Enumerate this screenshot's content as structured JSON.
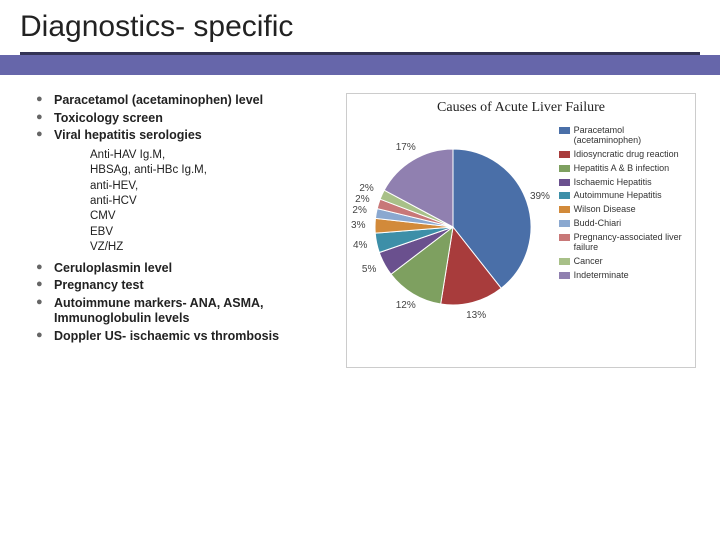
{
  "title": "Diagnostics- specific",
  "bullets_top": [
    "Paracetamol (acetaminophen) level",
    "Toxicology screen",
    "Viral hepatitis serologies"
  ],
  "sub_serologies": [
    "Anti-HAV Ig.M,",
    "HBSAg, anti-HBc Ig.M,",
    "anti-HEV,",
    "anti-HCV",
    "CMV",
    "EBV",
    "VZ/HZ"
  ],
  "bullets_bottom": [
    "Ceruloplasmin level",
    "Pregnancy test",
    "Autoimmune markers- ANA, ASMA, Immunoglobulin levels",
    "Doppler US- ischaemic vs thrombosis"
  ],
  "chart": {
    "type": "pie",
    "title": "Causes of Acute Liver Failure",
    "title_fontsize": 14,
    "background_color": "#ffffff",
    "border_color": "#cccccc",
    "label_fontsize": 10,
    "legend_fontsize": 9,
    "slices": [
      {
        "label": "Paracetamol (acetaminophen)",
        "value": 39,
        "color": "#4a6fa8",
        "show_label": true
      },
      {
        "label": "Idiosyncratic drug reaction",
        "value": 13,
        "color": "#a83c3c",
        "show_label": true
      },
      {
        "label": "Hepatitis A & B infection",
        "value": 12,
        "color": "#7ea060",
        "show_label": true
      },
      {
        "label": "Ischaemic Hepatitis",
        "value": 5,
        "color": "#6a508e",
        "show_label": true
      },
      {
        "label": "Autoimmune Hepatitis",
        "value": 4,
        "color": "#3d8fa8",
        "show_label": true
      },
      {
        "label": "Wilson Disease",
        "value": 3,
        "color": "#d28a3a",
        "show_label": true
      },
      {
        "label": "Budd-Chiari",
        "value": 2,
        "color": "#8aa8d0",
        "show_label": true
      },
      {
        "label": "Pregnancy-associated liver failure",
        "value": 2,
        "color": "#c87878",
        "show_label": true
      },
      {
        "label": "Cancer",
        "value": 2,
        "color": "#a8c088",
        "show_label": true
      },
      {
        "label": "Indeterminate",
        "value": 17,
        "color": "#9080b0",
        "show_label": true
      }
    ]
  }
}
